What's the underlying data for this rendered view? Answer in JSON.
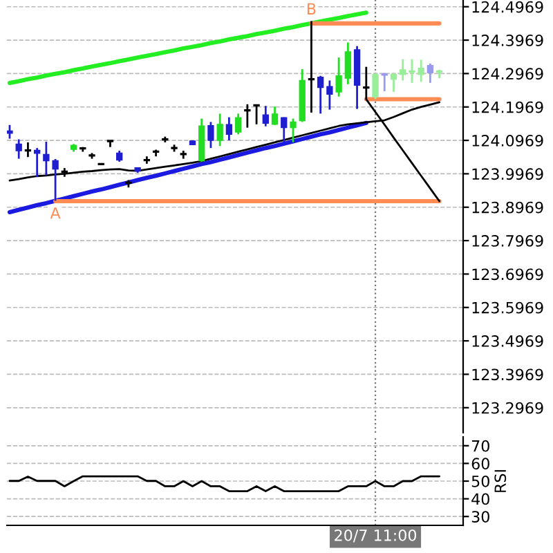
{
  "chart_data": [
    {
      "type": "candlestick",
      "categories": [
        null,
        null,
        null,
        null,
        null,
        null,
        null,
        null,
        null,
        null,
        null,
        null,
        null,
        null,
        null,
        null,
        null,
        null,
        null,
        null,
        null,
        null,
        null,
        null,
        null,
        null,
        null,
        null,
        null,
        null,
        null,
        null,
        null,
        null,
        null,
        null,
        null,
        null,
        null,
        null,
        null,
        null,
        null,
        null,
        null,
        null,
        null,
        null
      ],
      "ohlc": [
        [
          124.125,
          124.143,
          124.102,
          124.118
        ],
        [
          124.086,
          124.1,
          124.042,
          124.066
        ],
        [
          124.067,
          124.091,
          124.047,
          124.067
        ],
        [
          124.067,
          124.074,
          123.988,
          124.058
        ],
        [
          124.055,
          124.093,
          123.992,
          124.036
        ],
        [
          124.036,
          124.041,
          123.916,
          124.011
        ],
        [
          124.005,
          124.014,
          123.988,
          124.001
        ],
        [
          124.07,
          124.086,
          124.063,
          124.082
        ],
        [
          124.073,
          124.077,
          124.063,
          124.073
        ],
        [
          124.052,
          124.059,
          124.042,
          124.052
        ],
        [
          124.026,
          124.026,
          124.026,
          124.026
        ],
        [
          124.095,
          124.095,
          124.077,
          124.095
        ],
        [
          124.059,
          124.066,
          124.033,
          124.038
        ],
        [
          123.97,
          123.978,
          123.956,
          123.97
        ],
        [
          124.015,
          124.016,
          124.0,
          124.005
        ],
        [
          124.038,
          124.049,
          124.027,
          124.038
        ],
        [
          124.063,
          124.069,
          124.049,
          124.063
        ],
        [
          124.1,
          124.108,
          124.091,
          124.1
        ],
        [
          124.074,
          124.084,
          124.063,
          124.074
        ],
        [
          124.056,
          124.066,
          124.042,
          124.056
        ],
        [
          124.095,
          124.097,
          124.084,
          124.084
        ],
        [
          124.036,
          124.162,
          124.033,
          124.14
        ],
        [
          124.141,
          124.152,
          124.074,
          124.097
        ],
        [
          124.097,
          124.177,
          124.08,
          124.145
        ],
        [
          124.144,
          124.166,
          124.097,
          124.115
        ],
        [
          124.122,
          124.177,
          124.115,
          124.165
        ],
        [
          124.187,
          124.205,
          124.135,
          124.187
        ],
        [
          124.202,
          124.202,
          124.145,
          124.202
        ],
        [
          124.173,
          124.2,
          124.139,
          124.148
        ],
        [
          124.145,
          124.198,
          124.143,
          124.176
        ],
        [
          124.165,
          124.166,
          124.093,
          124.135
        ],
        [
          124.135,
          124.162,
          124.091,
          124.152
        ],
        [
          124.156,
          124.31,
          124.152,
          124.276
        ],
        [
          124.28,
          124.454,
          124.18,
          124.28
        ],
        [
          124.286,
          124.29,
          124.177,
          124.255
        ],
        [
          124.258,
          124.276,
          124.189,
          124.235
        ],
        [
          124.242,
          124.345,
          124.228,
          124.29
        ],
        [
          124.283,
          124.39,
          124.265,
          124.362
        ],
        [
          124.368,
          124.379,
          124.191,
          124.262
        ],
        [
          124.255,
          124.317,
          124.221,
          124.255
        ],
        [
          124.228,
          124.297,
          124.221,
          124.294
        ],
        [
          124.294,
          124.299,
          124.244,
          124.294
        ],
        [
          124.28,
          124.297,
          124.242,
          124.294
        ],
        [
          124.294,
          124.34,
          124.276,
          124.308
        ],
        [
          124.303,
          124.34,
          124.269,
          124.303
        ],
        [
          124.294,
          124.338,
          124.272,
          124.313
        ],
        [
          124.321,
          124.327,
          124.269,
          124.299
        ],
        [
          124.303,
          124.308,
          124.283,
          124.303
        ]
      ],
      "colors": [
        "#1f1fd0",
        "#1f1fd0",
        "#000000",
        "#1f1fd0",
        "#1f1fd0",
        "#1f1fd0",
        "#000000",
        "#22dd22",
        "#000000",
        "#000000",
        "#000000",
        "#000000",
        "#1f1fd0",
        "#000000",
        "#1f1fd0",
        "#000000",
        "#000000",
        "#000000",
        "#000000",
        "#000000",
        "#1f1fd0",
        "#22dd22",
        "#1f1fd0",
        "#22dd22",
        "#1f1fd0",
        "#22dd22",
        "#000000",
        "#000000",
        "#1f1fd0",
        "#22dd22",
        "#1f1fd0",
        "#22dd22",
        "#22dd22",
        "#000000",
        "#1f1fd0",
        "#1f1fd0",
        "#22dd22",
        "#22dd22",
        "#1f1fd0",
        "#000000",
        "#99ee99",
        "#9999ee",
        "#99ee99",
        "#99ee99",
        "#99ee99",
        "#99ee99",
        "#9999ee",
        "#99ee99"
      ],
      "series": [
        {
          "type": "line",
          "color": "#22ee22",
          "values": [
            124.269,
            124.274,
            124.28,
            124.285,
            124.291,
            124.296,
            124.301,
            124.307,
            124.312,
            124.318,
            124.323,
            124.328,
            124.334,
            124.339,
            124.345,
            124.35,
            124.355,
            124.361,
            124.366,
            124.372,
            124.377,
            124.382,
            124.388,
            124.393,
            124.399,
            124.404,
            124.409,
            124.415,
            124.42,
            124.425,
            124.431,
            124.436,
            124.442,
            124.447,
            124.453,
            124.458,
            124.463,
            124.469,
            124.474,
            124.479,
            null,
            null,
            null,
            null,
            null,
            null,
            null,
            null
          ]
        },
        {
          "type": "line",
          "color": "#1a1ae0",
          "values": [
            123.882,
            123.889,
            123.896,
            123.903,
            123.909,
            123.916,
            123.923,
            123.93,
            123.937,
            123.944,
            123.95,
            123.957,
            123.964,
            123.971,
            123.978,
            123.985,
            123.991,
            123.998,
            124.005,
            124.012,
            124.019,
            124.026,
            124.032,
            124.039,
            124.046,
            124.053,
            124.06,
            124.067,
            124.074,
            124.08,
            124.087,
            124.094,
            124.101,
            124.108,
            124.115,
            124.121,
            124.128,
            124.135,
            124.142,
            124.149,
            null,
            null,
            null,
            null,
            null,
            null,
            null,
            null
          ]
        },
        {
          "type": "line",
          "color": "#ff8c55",
          "value_labels": [
            null,
            null,
            null,
            null,
            null,
            null,
            null,
            null,
            null,
            null,
            null,
            null,
            null,
            null,
            null,
            null,
            null,
            null,
            null,
            null,
            null,
            null,
            null,
            null,
            null,
            null,
            null,
            null,
            null,
            null,
            null,
            null,
            null,
            "B",
            null,
            null,
            null,
            null,
            null,
            null,
            null,
            null,
            null,
            null,
            null,
            null,
            null,
            null
          ],
          "values": [
            null,
            null,
            null,
            null,
            null,
            null,
            null,
            null,
            null,
            null,
            null,
            null,
            null,
            null,
            null,
            null,
            null,
            null,
            null,
            null,
            null,
            null,
            null,
            null,
            null,
            null,
            null,
            null,
            null,
            null,
            null,
            null,
            null,
            124.447,
            124.447,
            124.447,
            124.447,
            124.447,
            124.447,
            124.447,
            124.447,
            124.447,
            124.447,
            124.447,
            124.447,
            124.447,
            124.447,
            124.447
          ]
        },
        {
          "type": "line",
          "color": "#ff8c55",
          "values": [
            null,
            null,
            null,
            null,
            null,
            null,
            null,
            null,
            null,
            null,
            null,
            null,
            null,
            null,
            null,
            null,
            null,
            null,
            null,
            null,
            null,
            null,
            null,
            null,
            null,
            null,
            null,
            null,
            null,
            null,
            null,
            null,
            null,
            null,
            null,
            null,
            null,
            null,
            null,
            124.22,
            124.22,
            124.22,
            124.22,
            124.22,
            124.22,
            124.22,
            124.22,
            124.22
          ]
        },
        {
          "type": "line",
          "color": "#ff8c55",
          "value_labels": [
            null,
            null,
            null,
            null,
            null,
            "A",
            null,
            null,
            null,
            null,
            null,
            null,
            null,
            null,
            null,
            null,
            null,
            null,
            null,
            null,
            null,
            null,
            null,
            null,
            null,
            null,
            null,
            null,
            null,
            null,
            null,
            null,
            null,
            null,
            null,
            null,
            null,
            null,
            null,
            null,
            null,
            null,
            null,
            null,
            null,
            null,
            null,
            null
          ],
          "values": [
            null,
            null,
            null,
            null,
            null,
            123.915,
            123.915,
            123.915,
            123.915,
            123.915,
            123.915,
            123.915,
            123.915,
            123.915,
            123.915,
            123.915,
            123.915,
            123.915,
            123.915,
            123.915,
            123.915,
            123.915,
            123.915,
            123.915,
            123.915,
            123.915,
            123.915,
            123.915,
            123.915,
            123.915,
            123.915,
            123.915,
            123.915,
            123.915,
            123.915,
            123.915,
            123.915,
            123.915,
            123.915,
            123.915,
            123.915,
            123.915,
            123.915,
            123.915,
            123.915,
            123.915,
            123.915,
            123.915
          ]
        },
        {
          "type": "line",
          "color": "#000000",
          "values": [
            123.977,
            123.981,
            123.986,
            123.99,
            123.992,
            123.995,
            123.997,
            124.0,
            124.003,
            124.005,
            124.008,
            124.01,
            124.011,
            124.007,
            124.006,
            124.01,
            124.014,
            124.018,
            124.022,
            124.026,
            124.03,
            124.035,
            124.042,
            124.049,
            124.056,
            124.063,
            124.07,
            124.077,
            124.084,
            124.091,
            124.098,
            124.105,
            124.112,
            124.119,
            124.126,
            124.133,
            124.14,
            124.145,
            124.148,
            124.151,
            124.154,
            124.157,
            124.167,
            124.178,
            124.189,
            124.197,
            124.204,
            124.211
          ]
        },
        {
          "type": "line",
          "color": "#000000",
          "values": [
            null,
            null,
            null,
            null,
            null,
            null,
            null,
            null,
            null,
            null,
            null,
            null,
            null,
            null,
            null,
            null,
            null,
            null,
            null,
            null,
            null,
            null,
            null,
            null,
            null,
            null,
            null,
            null,
            null,
            null,
            null,
            null,
            null,
            null,
            null,
            null,
            null,
            null,
            null,
            124.22,
            124.182,
            124.144,
            124.105,
            124.067,
            124.029,
            123.991,
            123.953,
            123.915
          ]
        }
      ],
      "ylim": [
        123.222,
        124.517
      ],
      "yticks": [
        124.4969,
        124.3969,
        124.2969,
        124.1969,
        124.0969,
        123.9969,
        123.8969,
        123.7969,
        123.6969,
        123.5969,
        123.4969,
        123.3969,
        123.2969
      ],
      "grid": "y"
    },
    {
      "type": "line",
      "ylabel": "RSI",
      "categories": [
        null,
        null,
        null,
        null,
        null,
        null,
        null,
        null,
        null,
        null,
        null,
        null,
        null,
        null,
        null,
        null,
        null,
        null,
        null,
        null,
        null,
        null,
        null,
        null,
        null,
        null,
        null,
        null,
        null,
        null,
        null,
        null,
        null,
        null,
        null,
        null,
        null,
        null,
        null,
        null,
        "20/7 11:00",
        null,
        null,
        null,
        null,
        null,
        null,
        null
      ],
      "series": [
        {
          "color": "#000000",
          "values": [
            50.1,
            50.1,
            52.5,
            50.1,
            50.1,
            50.1,
            47.1,
            50,
            52.7,
            52.7,
            52.7,
            52.7,
            52.7,
            52.7,
            52.7,
            50.1,
            50.1,
            47.1,
            47.1,
            50,
            47.1,
            50,
            47.1,
            47.1,
            44.3,
            44.3,
            44.3,
            47.1,
            44.3,
            47.1,
            44.3,
            44.3,
            44.3,
            44.3,
            44.3,
            44.3,
            44.3,
            47.1,
            47.1,
            47.1,
            50,
            47.1,
            47.1,
            50,
            50,
            52.7,
            52.7,
            52.7
          ]
        }
      ],
      "ref_lines": [
        {
          "axis": "x",
          "value": "20/7 11:00",
          "color": "#777777",
          "line_style": "dotted"
        }
      ],
      "ylim": [
        25,
        75
      ],
      "yticks": [
        30,
        40,
        50,
        60,
        70
      ],
      "grid": "y"
    }
  ]
}
